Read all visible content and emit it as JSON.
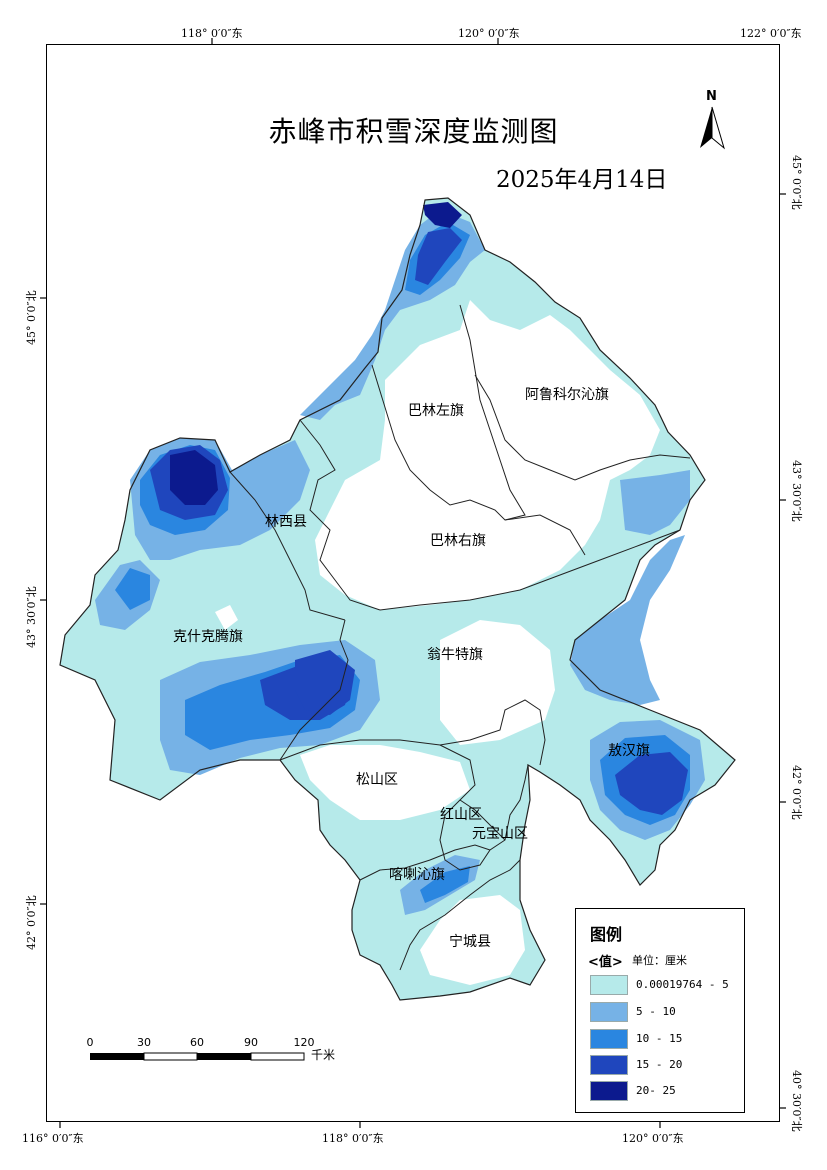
{
  "map": {
    "title": "赤峰市积雪深度监测图",
    "date": "2025年4月14日",
    "north_label": "N",
    "coords_top": [
      "118° 0′0″东",
      "120° 0′0″东",
      "122° 0′0″东"
    ],
    "coords_bottom": [
      "116° 0′0″东",
      "118° 0′0″东",
      "120° 0′0″东"
    ],
    "coords_left": [
      "45° 0′0″北",
      "43° 30′0″北",
      "42° 0′0″北"
    ],
    "coords_right": [
      "45° 0′0″北",
      "43° 30′0″北",
      "42° 0′0″北",
      "40° 30′0″北"
    ],
    "regions": [
      "巴林左旗",
      "阿鲁科尔沁旗",
      "林西县",
      "巴林右旗",
      "克什克腾旗",
      "翁牛特旗",
      "敖汉旗",
      "松山区",
      "红山区",
      "元宝山区",
      "喀喇沁旗",
      "宁城县"
    ]
  },
  "legend": {
    "title": "图例",
    "field": "<值>",
    "unit": "单位：厘米",
    "classes": [
      {
        "label": "0.00019764 - 5",
        "color": "#b6eaea"
      },
      {
        "label": "5 - 10",
        "color": "#76b2e6"
      },
      {
        "label": "10 - 15",
        "color": "#2a86e0"
      },
      {
        "label": "15 - 20",
        "color": "#1f46bd"
      },
      {
        "label": "20- 25",
        "color": "#0c1a8e"
      }
    ]
  },
  "scale_bar": {
    "ticks": [
      "0",
      "30",
      "60",
      "90",
      "120"
    ],
    "unit": "千米"
  }
}
